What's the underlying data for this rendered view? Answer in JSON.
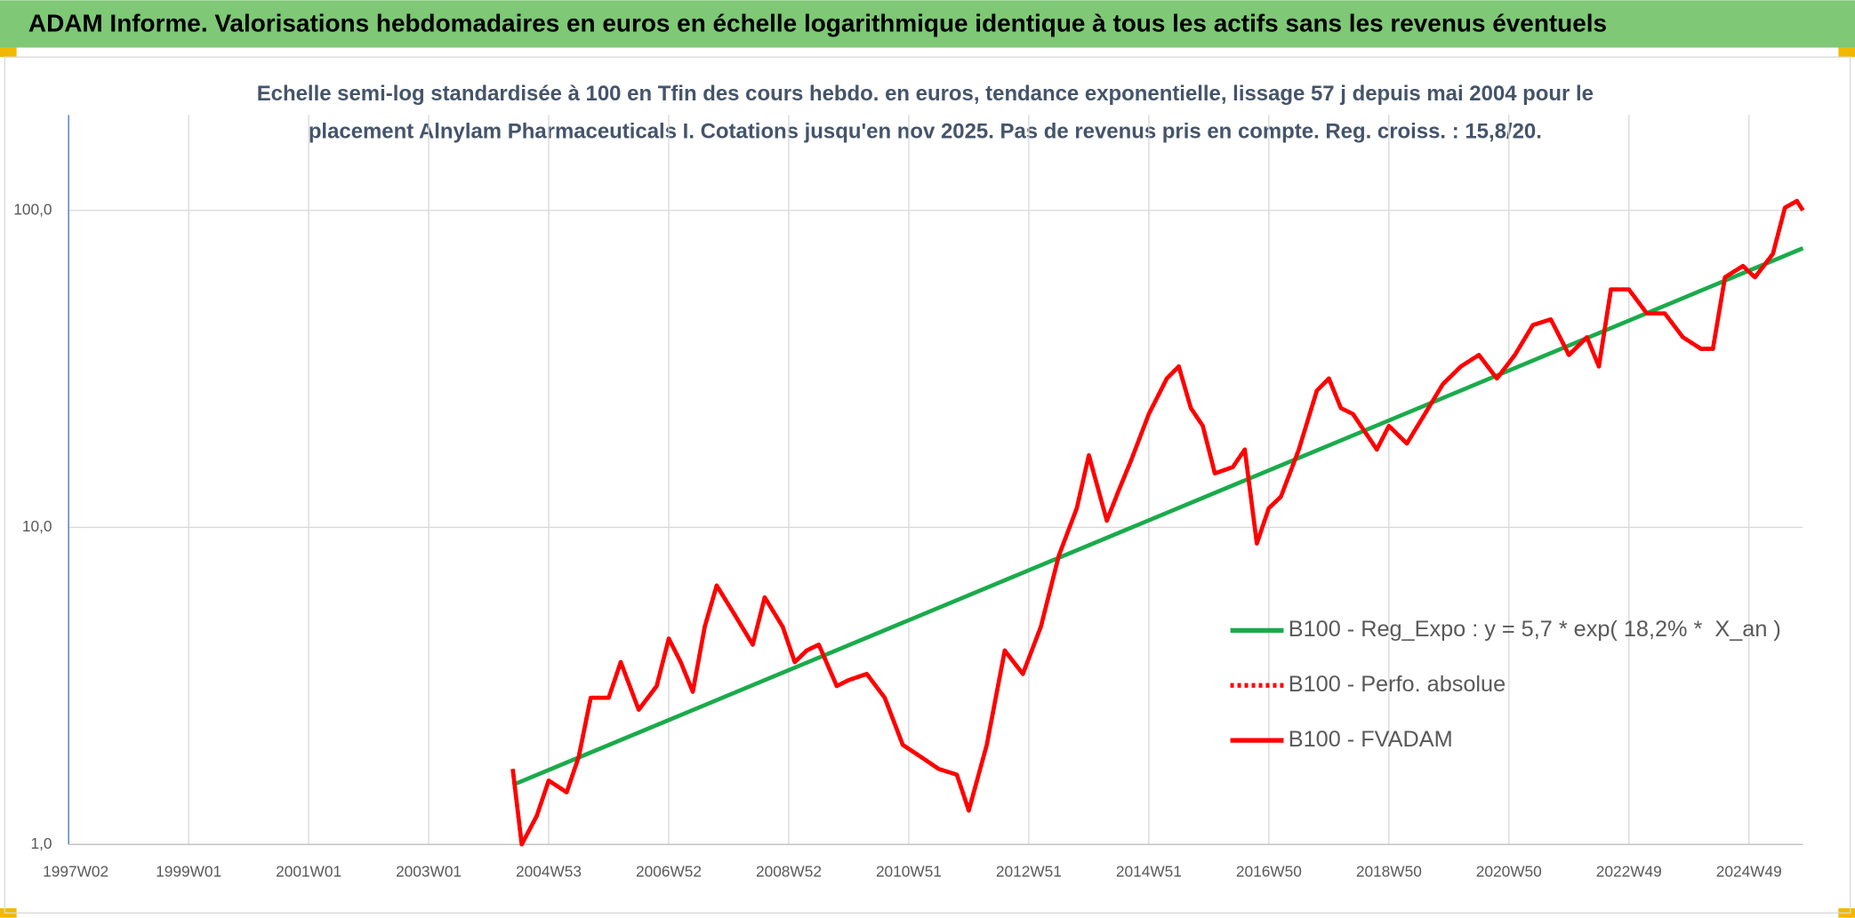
{
  "header": {
    "title": "ADAM Informe. Valorisations hebdomadaires en euros en échelle logarithmique identique à tous les actifs sans les revenus éventuels"
  },
  "chart_data": {
    "type": "line",
    "subtitle": [
      "Echelle semi-log standardisée à 100 en Tfin des cours hebdo. en euros, tendance exponentielle, lissage 57 j depuis mai 2004 pour le",
      "placement Alnylam Pharmaceuticals I. Cotations jusqu'en nov 2025. Pas de revenus pris en compte. Reg. croiss. : 15,8/20."
    ],
    "log_scale": true,
    "grid": true,
    "xlim": [
      1997.0,
      2025.9
    ],
    "xticks": [
      {
        "value": 1997.0,
        "label": "1997W02"
      },
      {
        "value": 1999.0,
        "label": "1999W01"
      },
      {
        "value": 2001.0,
        "label": "2001W01"
      },
      {
        "value": 2003.0,
        "label": "2003W01"
      },
      {
        "value": 2005.0,
        "label": "2004W53"
      },
      {
        "value": 2007.0,
        "label": "2006W52"
      },
      {
        "value": 2009.0,
        "label": "2008W52"
      },
      {
        "value": 2011.0,
        "label": "2010W51"
      },
      {
        "value": 2013.0,
        "label": "2012W51"
      },
      {
        "value": 2015.0,
        "label": "2014W51"
      },
      {
        "value": 2017.0,
        "label": "2016W50"
      },
      {
        "value": 2019.0,
        "label": "2018W50"
      },
      {
        "value": 2021.0,
        "label": "2020W50"
      },
      {
        "value": 2023.0,
        "label": "2022W49"
      },
      {
        "value": 2025.0,
        "label": "2024W49"
      }
    ],
    "ylim": [
      1,
      200
    ],
    "yticks": [
      {
        "value": 1,
        "label": "1,0"
      },
      {
        "value": 10,
        "label": "10,0"
      },
      {
        "value": 100,
        "label": "100,0"
      }
    ],
    "series": [
      {
        "name": "B100 - Reg_Expo : y = 5,7 * exp( 18,2% *  X_an )",
        "color": "#1aab4b",
        "style": "solid",
        "x": [
          2004.4,
          2025.9
        ],
        "values": [
          1.54,
          76
        ]
      },
      {
        "name": "B100 - Perfo. absolue",
        "color": "#ff0000",
        "style": "dotted",
        "x": [
          2004.4,
          2004.55,
          2004.8,
          2005.0,
          2005.3,
          2005.5,
          2005.7,
          2006.0,
          2006.2,
          2006.5,
          2006.8,
          2007.0,
          2007.2,
          2007.4,
          2007.6,
          2007.8,
          2008.1,
          2008.4,
          2008.6,
          2008.9,
          2009.1,
          2009.3,
          2009.5,
          2009.8,
          2010.0,
          2010.3,
          2010.6,
          2010.9,
          2011.2,
          2011.5,
          2011.8,
          2012.0,
          2012.3,
          2012.6,
          2012.9,
          2013.2,
          2013.5,
          2013.8,
          2014.0,
          2014.3,
          2014.5,
          2014.7,
          2015.0,
          2015.3,
          2015.5,
          2015.7,
          2015.9,
          2016.1,
          2016.4,
          2016.6,
          2016.8,
          2017.0,
          2017.2,
          2017.5,
          2017.8,
          2018.0,
          2018.2,
          2018.4,
          2018.8,
          2019.0,
          2019.3,
          2019.6,
          2019.9,
          2020.2,
          2020.5,
          2020.8,
          2021.1,
          2021.4,
          2021.7,
          2022.0,
          2022.3,
          2022.5,
          2022.7,
          2023.0,
          2023.3,
          2023.6,
          2023.9,
          2024.2,
          2024.4,
          2024.6,
          2024.9,
          2025.1,
          2025.4,
          2025.6,
          2025.8,
          2025.9
        ],
        "values": [
          1.73,
          1.0,
          1.23,
          1.59,
          1.46,
          1.89,
          2.9,
          2.9,
          3.76,
          2.66,
          3.16,
          4.46,
          3.76,
          3.03,
          4.86,
          6.56,
          5.3,
          4.27,
          6.02,
          4.86,
          3.76,
          4.09,
          4.27,
          3.16,
          3.3,
          3.45,
          2.9,
          2.06,
          1.89,
          1.73,
          1.66,
          1.28,
          2.06,
          4.09,
          3.45,
          4.86,
          8.14,
          11.5,
          16.9,
          10.5,
          13.1,
          16.2,
          22.8,
          29.5,
          32.2,
          23.8,
          20.9,
          14.8,
          15.5,
          17.6,
          8.9,
          11.5,
          12.5,
          17.6,
          27.0,
          29.5,
          23.8,
          22.8,
          17.6,
          20.9,
          18.4,
          22.8,
          28.3,
          32.2,
          35.0,
          29.5,
          35.0,
          43.5,
          45.3,
          35.0,
          39.8,
          32.2,
          56.3,
          56.3,
          47.3,
          47.3,
          39.8,
          36.6,
          36.6,
          61.5,
          66.8,
          61.5,
          72.9,
          102,
          107,
          100
        ]
      },
      {
        "name": "B100 - FVADAM",
        "color": "#ff0000",
        "style": "solid",
        "x": [
          2004.4,
          2004.55,
          2004.8,
          2005.0,
          2005.3,
          2005.5,
          2005.7,
          2006.0,
          2006.2,
          2006.5,
          2006.8,
          2007.0,
          2007.2,
          2007.4,
          2007.6,
          2007.8,
          2008.1,
          2008.4,
          2008.6,
          2008.9,
          2009.1,
          2009.3,
          2009.5,
          2009.8,
          2010.0,
          2010.3,
          2010.6,
          2010.9,
          2011.2,
          2011.5,
          2011.8,
          2012.0,
          2012.3,
          2012.6,
          2012.9,
          2013.2,
          2013.5,
          2013.8,
          2014.0,
          2014.3,
          2014.5,
          2014.7,
          2015.0,
          2015.3,
          2015.5,
          2015.7,
          2015.9,
          2016.1,
          2016.4,
          2016.6,
          2016.8,
          2017.0,
          2017.2,
          2017.5,
          2017.8,
          2018.0,
          2018.2,
          2018.4,
          2018.8,
          2019.0,
          2019.3,
          2019.6,
          2019.9,
          2020.2,
          2020.5,
          2020.8,
          2021.1,
          2021.4,
          2021.7,
          2022.0,
          2022.3,
          2022.5,
          2022.7,
          2023.0,
          2023.3,
          2023.6,
          2023.9,
          2024.2,
          2024.4,
          2024.6,
          2024.9,
          2025.1,
          2025.4,
          2025.6,
          2025.8,
          2025.9
        ],
        "values": [
          1.73,
          1.0,
          1.23,
          1.59,
          1.46,
          1.89,
          2.9,
          2.9,
          3.76,
          2.66,
          3.16,
          4.46,
          3.76,
          3.03,
          4.86,
          6.56,
          5.3,
          4.27,
          6.02,
          4.86,
          3.76,
          4.09,
          4.27,
          3.16,
          3.3,
          3.45,
          2.9,
          2.06,
          1.89,
          1.73,
          1.66,
          1.28,
          2.06,
          4.09,
          3.45,
          4.86,
          8.14,
          11.5,
          16.9,
          10.5,
          13.1,
          16.2,
          22.8,
          29.5,
          32.2,
          23.8,
          20.9,
          14.8,
          15.5,
          17.6,
          8.9,
          11.5,
          12.5,
          17.6,
          27.0,
          29.5,
          23.8,
          22.8,
          17.6,
          20.9,
          18.4,
          22.8,
          28.3,
          32.2,
          35.0,
          29.5,
          35.0,
          43.5,
          45.3,
          35.0,
          39.8,
          32.2,
          56.3,
          56.3,
          47.3,
          47.3,
          39.8,
          36.6,
          36.6,
          61.5,
          66.8,
          61.5,
          72.9,
          102,
          107,
          100
        ]
      }
    ]
  }
}
